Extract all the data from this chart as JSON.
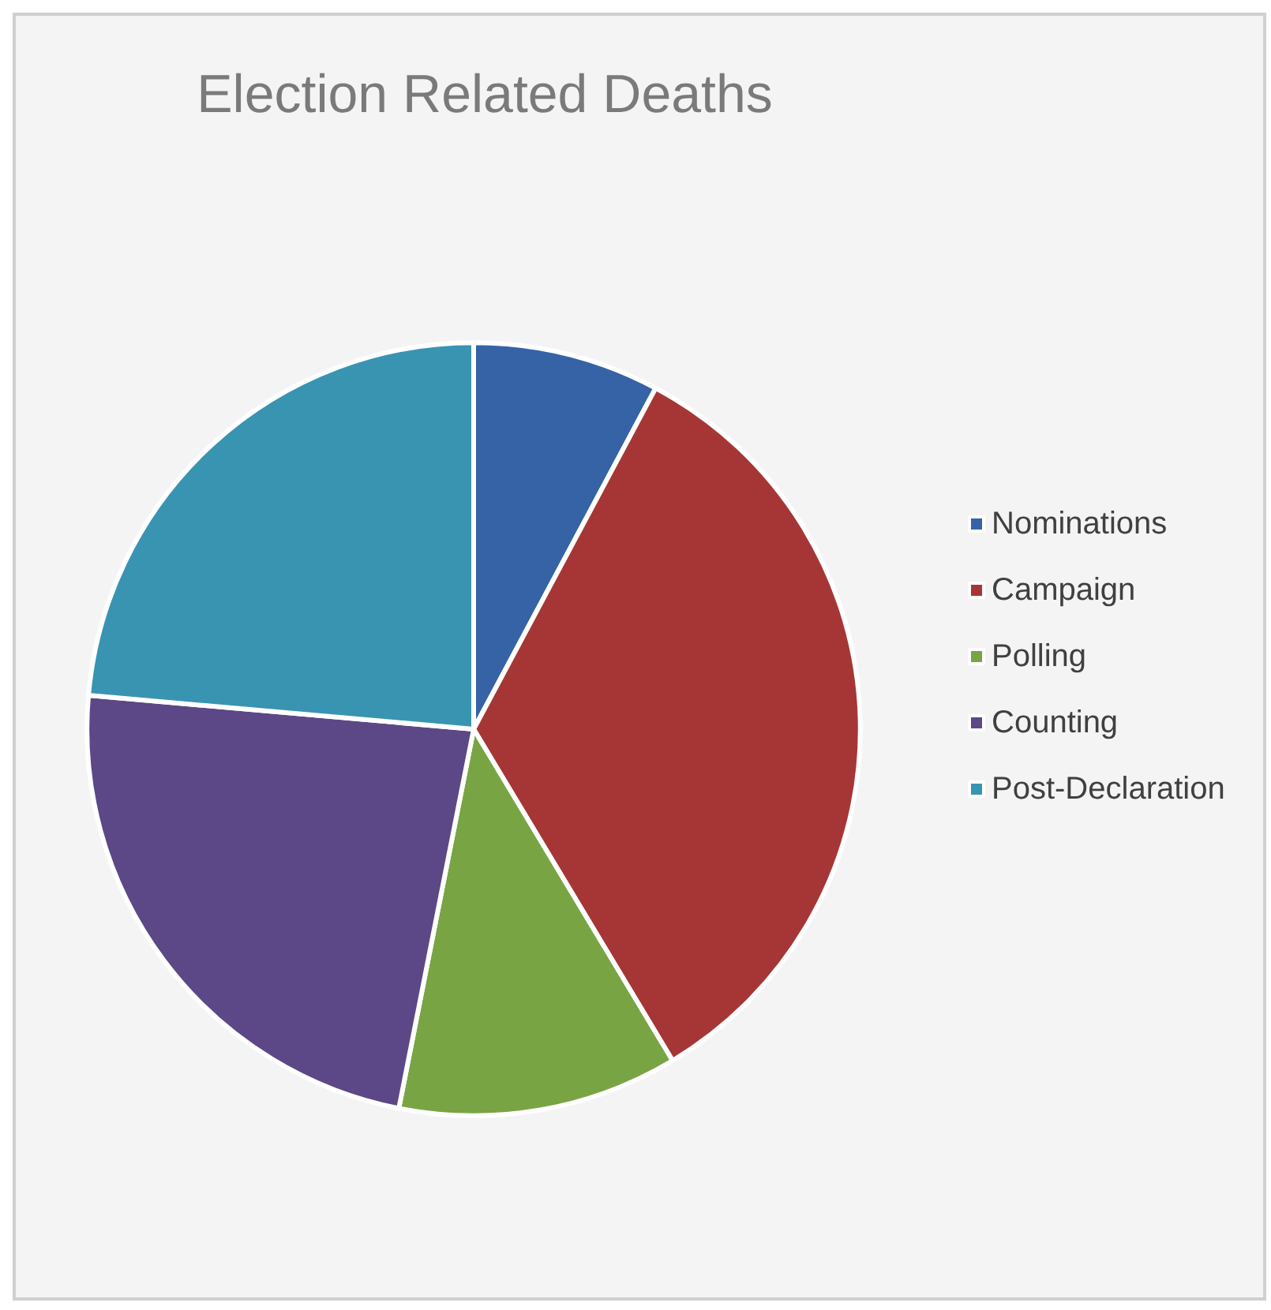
{
  "chart_data": {
    "type": "pie",
    "title": "Election Related Deaths",
    "categories": [
      "Nominations",
      "Campaign",
      "Polling",
      "Counting",
      "Post-Declaration"
    ],
    "values": [
      7.8,
      33.6,
      11.7,
      23.3,
      23.6
    ],
    "colors": [
      "#3563a6",
      "#a63636",
      "#79a443",
      "#5c4886",
      "#3994b2"
    ],
    "legend": "right"
  }
}
